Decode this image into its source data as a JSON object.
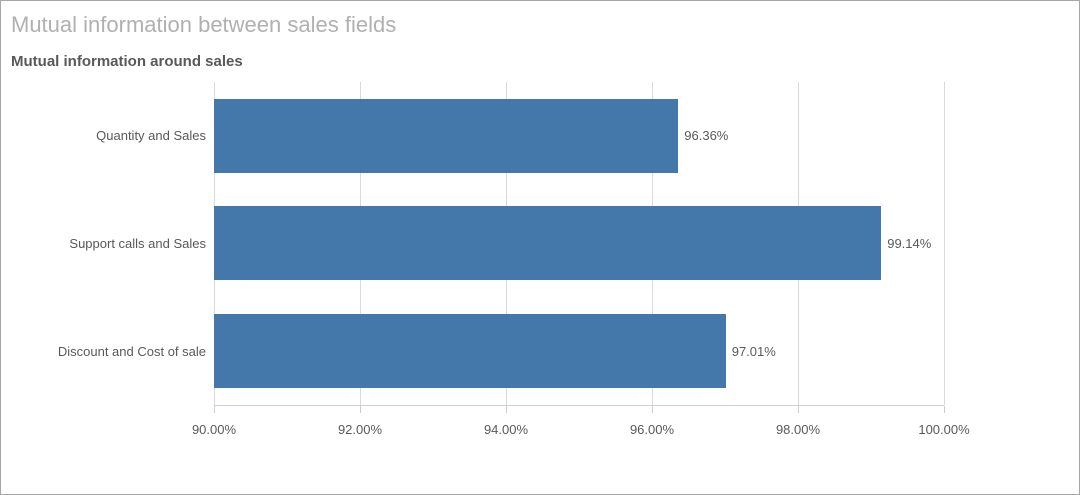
{
  "header": {
    "title": "Mutual information between sales fields",
    "subtitle": "Mutual information around sales"
  },
  "chart_data": {
    "type": "bar",
    "orientation": "horizontal",
    "title": "Mutual information between sales fields",
    "subtitle": "Mutual information around sales",
    "categories": [
      "Quantity and Sales",
      "Support calls and Sales",
      "Discount and Cost of sale"
    ],
    "values": [
      96.36,
      99.14,
      97.01
    ],
    "value_labels": [
      "96.36%",
      "99.14%",
      "97.01%"
    ],
    "xlim": [
      90,
      100
    ],
    "x_tick_values": [
      90,
      92,
      94,
      96,
      98,
      100
    ],
    "x_tick_labels": [
      "90.00%",
      "92.00%",
      "94.00%",
      "96.00%",
      "98.00%",
      "100.00%"
    ],
    "grid": true,
    "legend": false,
    "colors": {
      "bar": "#4477aa",
      "gridline": "#d9d9d9",
      "axis_line": "#d1d1d1",
      "tick_label": "#595959",
      "category_label": "#595959",
      "value_label": "#595959",
      "title": "#b0b0b0",
      "subtitle": "#595959"
    }
  }
}
